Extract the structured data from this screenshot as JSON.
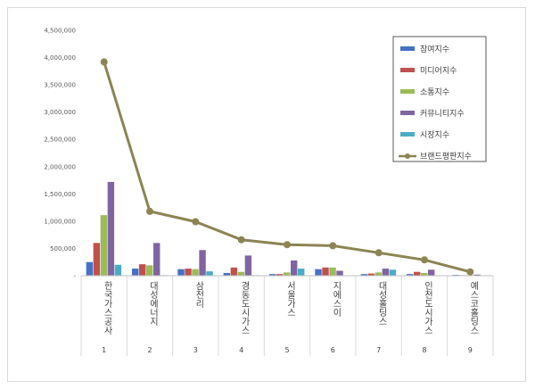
{
  "chart_data": {
    "type": "bar",
    "title": "",
    "xlabel": "",
    "ylabel": "",
    "ylim": [
      0,
      4500000
    ],
    "yticks": [
      "-",
      "500,000",
      "1,000,000",
      "1,500,000",
      "2,000,000",
      "2,500,000",
      "3,000,000",
      "3,500,000",
      "4,000,000",
      "4,500,000"
    ],
    "grid": false,
    "legend_position": "top-right",
    "ranks": [
      "1",
      "2",
      "3",
      "4",
      "5",
      "6",
      "7",
      "8",
      "9"
    ],
    "categories": [
      "한국가스공사",
      "대성에너지",
      "삼천리",
      "경동도시가스",
      "서울가스",
      "지에스이",
      "대성홀딩스",
      "인천도시가스",
      "예스코홀딩스"
    ],
    "series": [
      {
        "name": "참여지수",
        "kind": "bar",
        "color": "#4472c4",
        "values": [
          250000,
          130000,
          120000,
          50000,
          30000,
          120000,
          30000,
          30000,
          15000
        ]
      },
      {
        "name": "미디어지수",
        "kind": "bar",
        "color": "#c0504d",
        "values": [
          600000,
          210000,
          130000,
          150000,
          30000,
          150000,
          40000,
          70000,
          10000
        ]
      },
      {
        "name": "소통지수",
        "kind": "bar",
        "color": "#9bbb59",
        "values": [
          1110000,
          190000,
          120000,
          70000,
          60000,
          150000,
          60000,
          50000,
          10000
        ]
      },
      {
        "name": "커뮤니티지수",
        "kind": "bar",
        "color": "#8064a2",
        "values": [
          1720000,
          600000,
          470000,
          370000,
          280000,
          90000,
          130000,
          110000,
          20000
        ]
      },
      {
        "name": "시장지수",
        "kind": "bar",
        "color": "#4bacc6",
        "values": [
          200000,
          10000,
          80000,
          10000,
          130000,
          0,
          110000,
          0,
          0
        ]
      },
      {
        "name": "브랜드평판지수",
        "kind": "line",
        "color": "#8c8452",
        "values": [
          3920000,
          1180000,
          990000,
          660000,
          570000,
          550000,
          420000,
          290000,
          70000
        ]
      }
    ]
  }
}
